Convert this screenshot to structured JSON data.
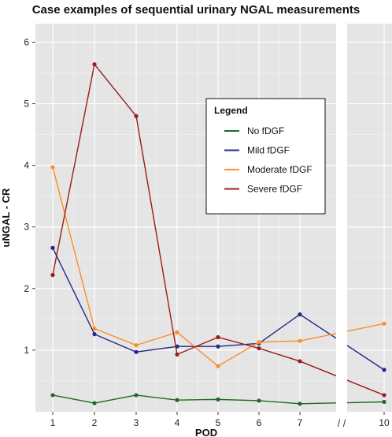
{
  "chart_data": {
    "type": "line",
    "title": "Case examples of sequential urinary NGAL measurements",
    "xlabel": "POD",
    "ylabel": "uNGAL - CR",
    "x_ticks": [
      "1",
      "2",
      "3",
      "4",
      "5",
      "6",
      "7",
      "10"
    ],
    "x_break_marker": "/ /",
    "y_ticks": [
      "1",
      "2",
      "3",
      "4",
      "5",
      "6"
    ],
    "ylim": [
      0,
      6.3
    ],
    "grid": true,
    "legend": {
      "title": "Legend",
      "placement": "right"
    },
    "series": [
      {
        "name": "No fDGF",
        "color": "#1e6b1e",
        "points": [
          [
            1,
            0.27
          ],
          [
            2,
            0.14
          ],
          [
            3,
            0.27
          ],
          [
            4,
            0.19
          ],
          [
            5,
            0.2
          ],
          [
            6,
            0.18
          ],
          [
            7,
            0.13
          ],
          [
            10,
            0.16
          ]
        ]
      },
      {
        "name": "Mild fDGF",
        "color": "#232a8c",
        "points": [
          [
            1,
            2.66
          ],
          [
            2,
            1.26
          ],
          [
            3,
            0.97
          ],
          [
            4,
            1.06
          ],
          [
            5,
            1.06
          ],
          [
            6,
            1.11
          ],
          [
            7,
            1.58
          ],
          [
            10,
            0.68
          ]
        ]
      },
      {
        "name": "Moderate fDGF",
        "color": "#ff8c26",
        "points": [
          [
            1,
            3.97
          ],
          [
            2,
            1.35
          ],
          [
            3,
            1.08
          ],
          [
            4,
            1.29
          ],
          [
            5,
            0.74
          ],
          [
            6,
            1.13
          ],
          [
            7,
            1.15
          ],
          [
            10,
            1.43
          ]
        ]
      },
      {
        "name": "Severe fDGF",
        "color": "#9b1c1c",
        "points": [
          [
            1,
            2.22
          ],
          [
            2,
            5.64
          ],
          [
            3,
            4.8
          ],
          [
            4,
            0.93
          ],
          [
            5,
            1.21
          ],
          [
            6,
            1.03
          ],
          [
            7,
            0.82
          ],
          [
            10,
            0.27
          ]
        ]
      }
    ]
  }
}
